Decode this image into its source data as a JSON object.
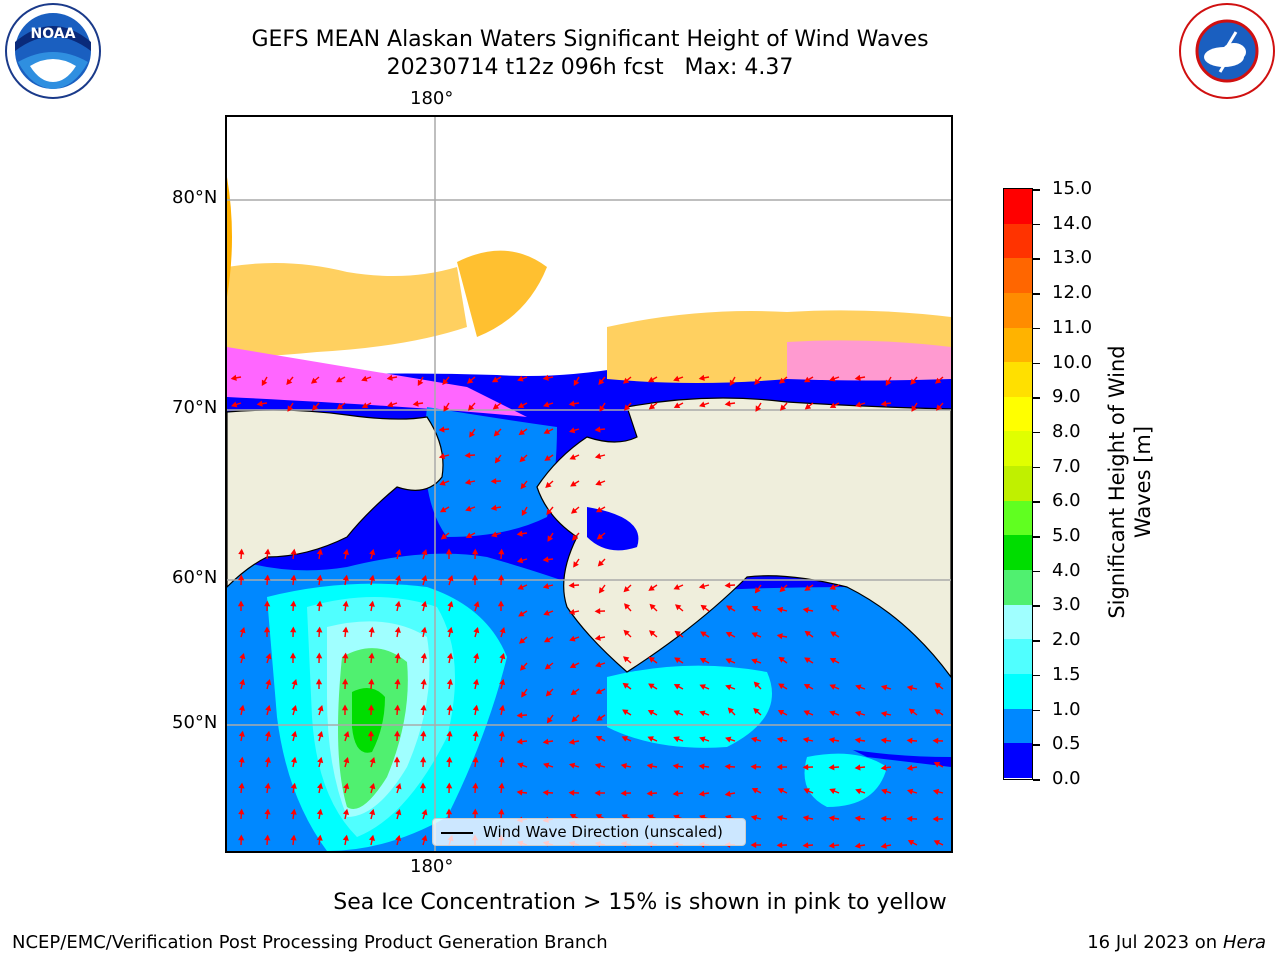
{
  "title_line1": "GEFS MEAN Alaskan Waters Significant Height of Wind Waves",
  "title_line2": "20230714 t12z 096h fcst   Max: 4.37",
  "logos": {
    "left": "NOAA",
    "right": "NATIONAL WEATHER SERVICE"
  },
  "map": {
    "lon_label_top": "180°",
    "lon_label_bottom": "180°",
    "lat_labels": [
      "80°N",
      "70°N",
      "60°N",
      "50°N"
    ],
    "legend_label": "Wind Wave Direction (unscaled)"
  },
  "colorbar": {
    "title": "Significant Height of Wind Waves [m]",
    "ticks": [
      "15.0",
      "14.0",
      "13.0",
      "12.0",
      "11.0",
      "10.0",
      "9.0",
      "8.0",
      "7.0",
      "6.0",
      "5.0",
      "4.0",
      "3.0",
      "2.0",
      "1.5",
      "1.0",
      "0.5",
      "0.0"
    ],
    "colors": [
      "#ff0000",
      "#ff3300",
      "#ff6600",
      "#ff8c00",
      "#ffb300",
      "#ffe000",
      "#ffff00",
      "#e0ff00",
      "#c0f000",
      "#60ff20",
      "#00dd00",
      "#50f070",
      "#a0ffff",
      "#50ffff",
      "#00ffff",
      "#0088ff",
      "#0000ff"
    ]
  },
  "caption": "Sea Ice Concentration > 15% is shown in pink to yellow",
  "footer_left": "NCEP/EMC/Verification Post Processing Product Generation Branch",
  "footer_right_date": "16 Jul 2023 on ",
  "footer_right_machine": "Hera"
}
